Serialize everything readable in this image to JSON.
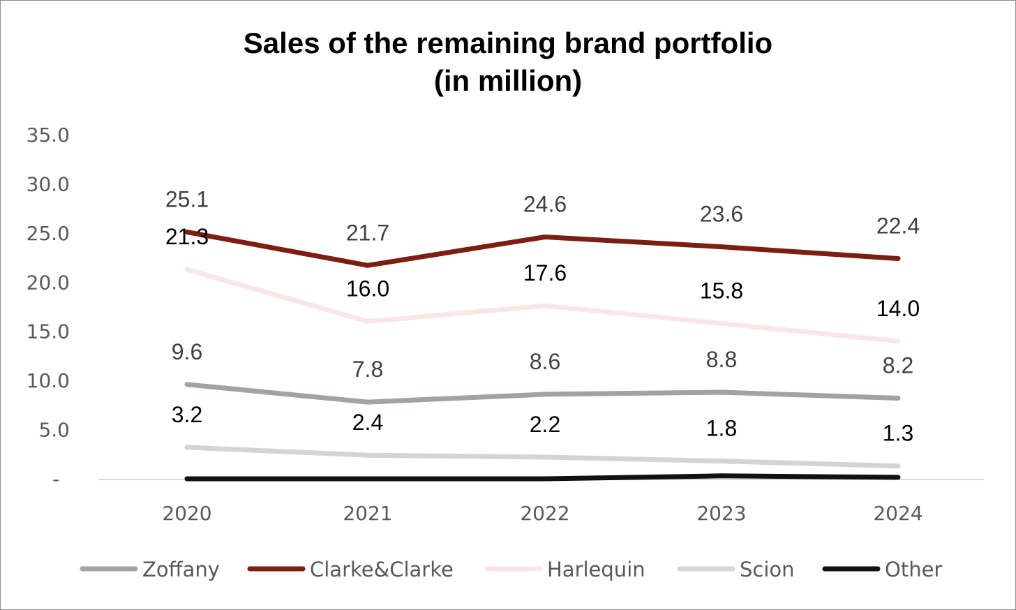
{
  "chart_data": {
    "type": "line",
    "title": "Sales of the remaining brand portfolio",
    "subtitle": "(in million)",
    "categories": [
      "2020",
      "2021",
      "2022",
      "2023",
      "2024"
    ],
    "ylim": [
      0,
      35
    ],
    "y_ticks": [
      {
        "value": 35,
        "label": "35.0"
      },
      {
        "value": 30,
        "label": "30.0"
      },
      {
        "value": 25,
        "label": "25.0"
      },
      {
        "value": 20,
        "label": "20.0"
      },
      {
        "value": 15,
        "label": "15.0"
      },
      {
        "value": 10,
        "label": "10.0"
      },
      {
        "value": 5,
        "label": "5.0"
      },
      {
        "value": 0,
        "label": "-"
      }
    ],
    "grid": false,
    "legend_position": "bottom",
    "series": [
      {
        "name": "Zoffany",
        "color": "#a5a0a1",
        "values": [
          9.6,
          7.8,
          8.6,
          8.8,
          8.2
        ],
        "labels": [
          "9.6",
          "7.8",
          "8.6",
          "8.8",
          "8.2"
        ],
        "label_color": "#404040"
      },
      {
        "name": "Clarke&Clarke",
        "color": "#7b1f12",
        "values": [
          25.1,
          21.7,
          24.6,
          23.6,
          22.4
        ],
        "labels": [
          "25.1",
          "21.7",
          "24.6",
          "23.6",
          "22.4"
        ],
        "label_color": "#404040"
      },
      {
        "name": "Harlequin",
        "color": "#fbe6e6",
        "values": [
          21.3,
          16.0,
          17.6,
          15.8,
          14.0
        ],
        "labels": [
          "21.3",
          "16.0",
          "17.6",
          "15.8",
          "14.0"
        ],
        "label_color": "#000000"
      },
      {
        "name": "Scion",
        "color": "#d4d4d4",
        "values": [
          3.2,
          2.4,
          2.2,
          1.8,
          1.3
        ],
        "labels": [
          "3.2",
          "2.4",
          "2.2",
          "1.8",
          "1.3"
        ],
        "label_color": "#000000"
      },
      {
        "name": "Other",
        "color": "#111111",
        "values": [
          0.0,
          0.0,
          0.0,
          0.3,
          0.15
        ]
      }
    ]
  }
}
